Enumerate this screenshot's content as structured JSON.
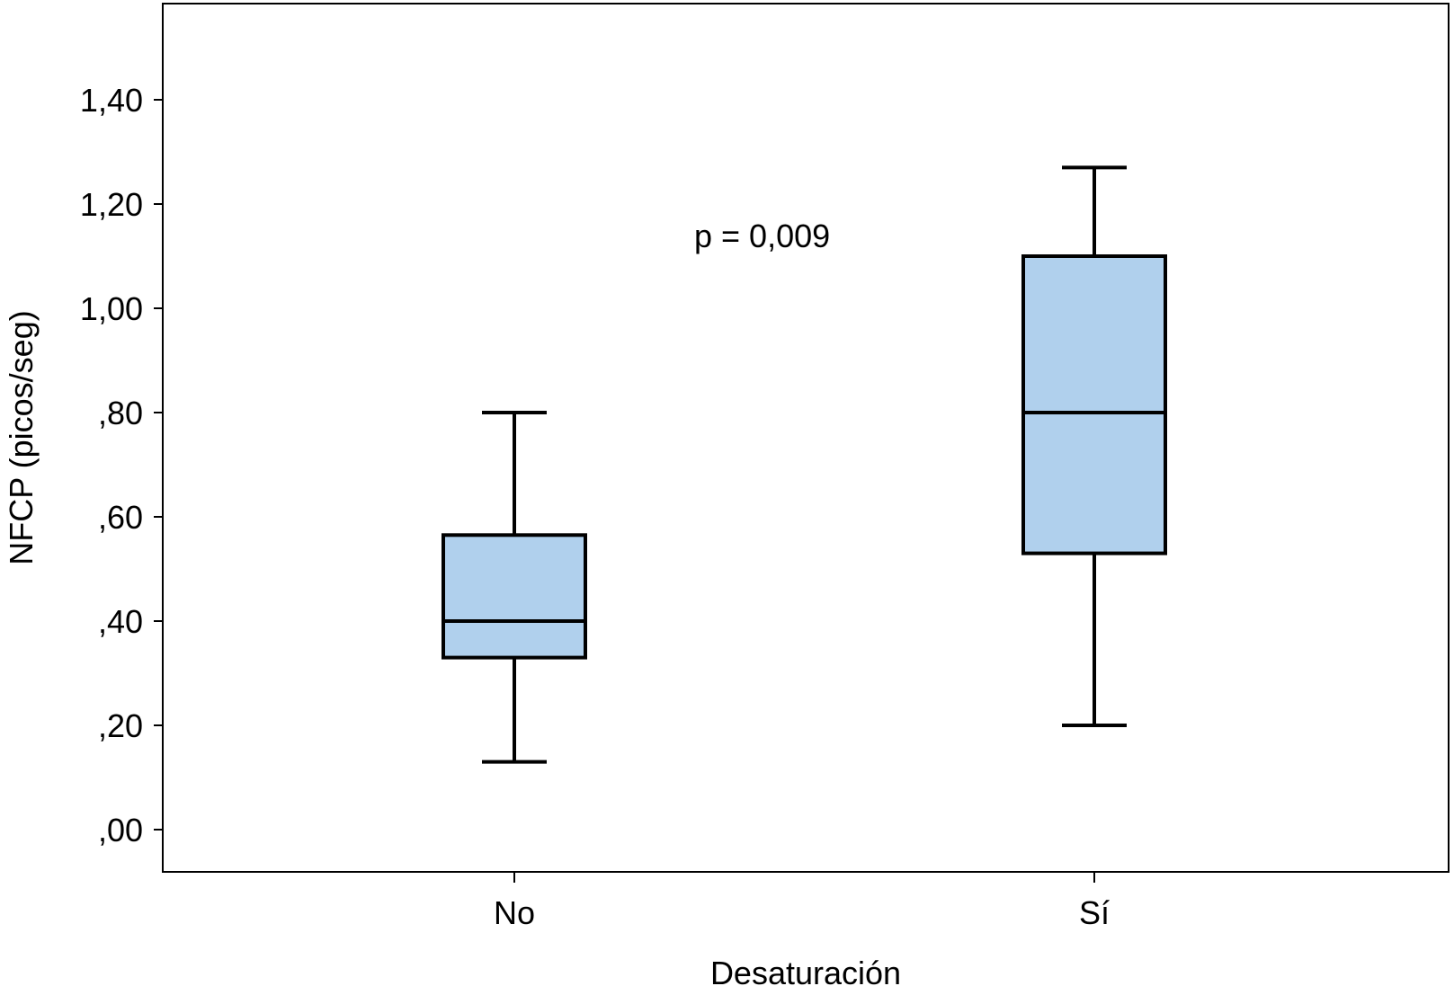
{
  "chart_data": {
    "type": "boxplot",
    "title": "",
    "xlabel": "Desaturación",
    "ylabel": "NFCP (picos/seg)",
    "ylim": [
      -0.08,
      1.6
    ],
    "yticks": [
      {
        "value": 0.0,
        "label": ",00"
      },
      {
        "value": 0.2,
        "label": ",20"
      },
      {
        "value": 0.4,
        "label": ",40"
      },
      {
        "value": 0.6,
        "label": ",60"
      },
      {
        "value": 0.8,
        "label": ",80"
      },
      {
        "value": 1.0,
        "label": "1,00"
      },
      {
        "value": 1.2,
        "label": "1,20"
      },
      {
        "value": 1.4,
        "label": "1,40"
      }
    ],
    "categories": [
      "No",
      "Sí"
    ],
    "boxes": [
      {
        "category": "No",
        "min": 0.13,
        "q1": 0.33,
        "median": 0.4,
        "q3": 0.565,
        "max": 0.8
      },
      {
        "category": "Sí",
        "min": 0.2,
        "q1": 0.53,
        "median": 0.8,
        "q3": 1.1,
        "max": 1.27
      }
    ],
    "annotation": "p = 0,009",
    "grid": false,
    "colors": {
      "box_fill": "#b0d0ed",
      "stroke": "#000000",
      "background": "#ffffff"
    }
  }
}
